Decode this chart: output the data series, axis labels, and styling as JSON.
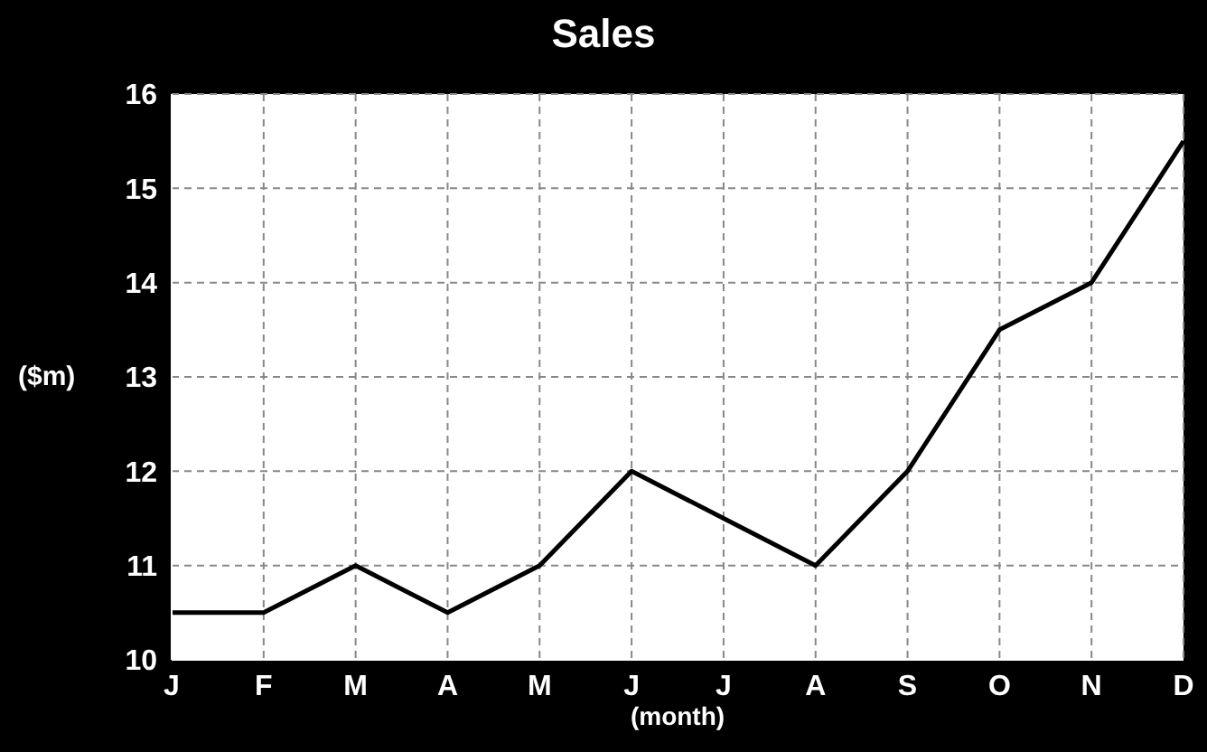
{
  "chart_data": {
    "type": "line",
    "title": "Sales",
    "xlabel": "(month)",
    "ylabel": "($m)",
    "categories": [
      "J",
      "F",
      "M",
      "A",
      "M",
      "J",
      "J",
      "A",
      "S",
      "O",
      "N",
      "D"
    ],
    "series": [
      {
        "color": "#000000",
        "values": [
          10.5,
          10.5,
          11,
          10.5,
          11,
          12,
          11.5,
          11,
          12,
          13.5,
          14,
          15.5
        ]
      }
    ],
    "ylim": [
      10,
      16
    ],
    "yticks": [
      10,
      11,
      12,
      13,
      14,
      15,
      16
    ],
    "grid": true,
    "marker": "none",
    "line_style": "solid"
  }
}
